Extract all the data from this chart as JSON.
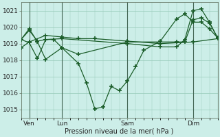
{
  "background_color": "#cceee8",
  "grid_color": "#99ccbb",
  "line_color": "#1a5c28",
  "marker_color": "#1a5c28",
  "xlabel": "Pression niveau de la mer( hPa )",
  "ylim": [
    1014.5,
    1021.5
  ],
  "yticks": [
    1015,
    1016,
    1017,
    1018,
    1019,
    1020,
    1021
  ],
  "series": [
    {
      "x": [
        0,
        1,
        3,
        5,
        7,
        9,
        13,
        17,
        21,
        24
      ],
      "y": [
        1018.75,
        1019.1,
        1019.5,
        1019.4,
        1019.3,
        1019.3,
        1019.15,
        1019.0,
        1019.1,
        1019.3
      ]
    },
    {
      "x": [
        0,
        1,
        2,
        3,
        5,
        7,
        8,
        9,
        10,
        11,
        12,
        13,
        14,
        15,
        17,
        19,
        20,
        21,
        22,
        23,
        24
      ],
      "y": [
        1019.25,
        1019.9,
        1019.1,
        1018.05,
        1018.75,
        1017.8,
        1016.6,
        1015.05,
        1015.15,
        1016.4,
        1016.15,
        1016.75,
        1017.6,
        1018.6,
        1019.15,
        1020.5,
        1020.8,
        1020.3,
        1020.3,
        1019.9,
        1019.35
      ]
    },
    {
      "x": [
        0,
        1,
        2,
        3,
        4,
        5,
        7,
        13,
        19,
        20,
        21,
        22,
        23,
        24
      ],
      "y": [
        1019.25,
        1019.05,
        1018.1,
        1019.25,
        1019.25,
        1018.75,
        1018.35,
        1019.1,
        1019.1,
        1019.1,
        1020.45,
        1020.55,
        1020.25,
        1019.35
      ]
    },
    {
      "x": [
        0,
        1,
        2,
        3,
        5,
        13,
        17,
        19,
        20,
        21,
        22,
        23,
        24
      ],
      "y": [
        1019.25,
        1019.8,
        1019.15,
        1019.25,
        1019.3,
        1019.0,
        1018.8,
        1018.8,
        1019.25,
        1021.0,
        1021.1,
        1020.3,
        1019.35
      ]
    }
  ],
  "vlines_x": [
    1,
    5,
    13,
    21
  ],
  "xtick_labels": [
    "Ven",
    "Lun",
    "Sam",
    "Dim"
  ],
  "xtick_positions": [
    1,
    5,
    13,
    21
  ],
  "xlim": [
    0,
    24
  ]
}
